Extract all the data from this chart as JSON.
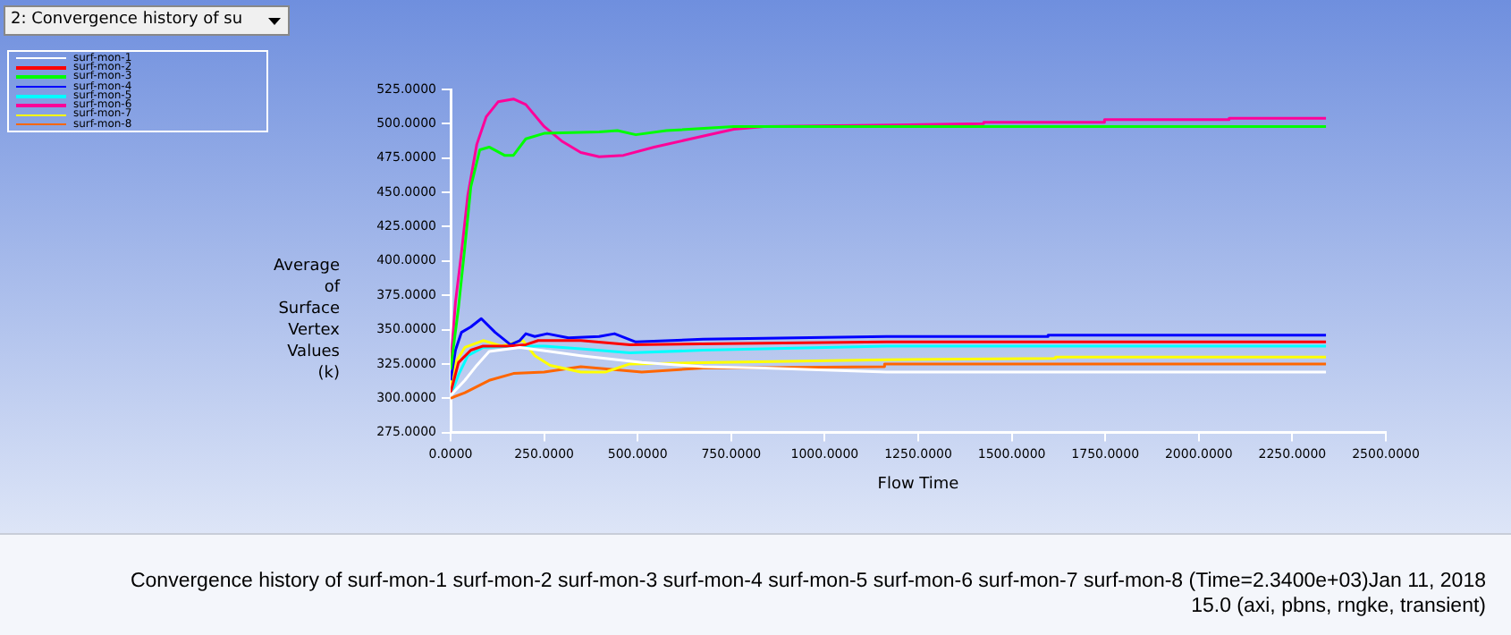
{
  "chart_data": {
    "type": "line",
    "xlabel": "Flow Time",
    "ylabel": "Average of Surface Vertex Values (k)",
    "annotations": [
      "2: Convergence history of su",
      "Convergence history of surf-mon-1 surf-mon-2 surf-mon-3 surf-mon-4 surf-mon-5 surf-mon-6 surf-mon-7 surf-mon-8  (Time=2.3400e+03)Jan 11, 2018",
      "15.0 (axi, pbns, rngke, transient)"
    ],
    "xlim": [
      0,
      2500
    ],
    "ylim": [
      275,
      525
    ],
    "xticks": [
      {
        "value": 0,
        "label": "0.0000"
      },
      {
        "value": 250,
        "label": "250.0000"
      },
      {
        "value": 500,
        "label": "500.0000"
      },
      {
        "value": 750,
        "label": "750.0000"
      },
      {
        "value": 1000,
        "label": "1000.0000"
      },
      {
        "value": 1250,
        "label": "1250.0000"
      },
      {
        "value": 1500,
        "label": "1500.0000"
      },
      {
        "value": 1750,
        "label": "1750.0000"
      },
      {
        "value": 2000,
        "label": "2000.0000"
      },
      {
        "value": 2250,
        "label": "2250.0000"
      },
      {
        "value": 2500,
        "label": "2500.0000"
      }
    ],
    "yticks": [
      {
        "value": 275,
        "label": "275.0000"
      },
      {
        "value": 300,
        "label": "300.0000"
      },
      {
        "value": 325,
        "label": "325.0000"
      },
      {
        "value": 350,
        "label": "350.0000"
      },
      {
        "value": 375,
        "label": "375.0000"
      },
      {
        "value": 400,
        "label": "400.0000"
      },
      {
        "value": 425,
        "label": "425.0000"
      },
      {
        "value": 450,
        "label": "450.0000"
      },
      {
        "value": 475,
        "label": "475.0000"
      },
      {
        "value": 500,
        "label": "500.0000"
      },
      {
        "value": 525,
        "label": "525.0000"
      }
    ],
    "grid": false,
    "legend": "top left",
    "marker": "none",
    "line_style": "solid",
    "series": [
      {
        "name": "surf-mon-1",
        "color": "#ffffff",
        "x": [
          0,
          38,
          70,
          103,
          185,
          266,
          348,
          511,
          675,
          838,
          1165,
          2340
        ],
        "values": [
          302,
          313,
          324,
          334,
          337,
          334,
          331,
          326,
          323,
          322,
          319,
          319
        ]
      },
      {
        "name": "surf-mon-2",
        "color": "#ff0000",
        "x": [
          0,
          21,
          54,
          87,
          152,
          201,
          234,
          348,
          479,
          1165,
          2340
        ],
        "values": [
          304,
          326,
          335,
          338,
          338,
          339,
          342,
          342,
          339,
          341,
          341
        ]
      },
      {
        "name": "surf-mon-3",
        "color": "#00ff00",
        "x": [
          0,
          21,
          38,
          54,
          78,
          103,
          144,
          168,
          201,
          250,
          397,
          446,
          495,
          577,
          757,
          1165,
          2340
        ],
        "values": [
          321,
          366,
          410,
          454,
          481,
          483,
          477,
          477,
          489,
          493,
          494,
          495,
          492,
          495,
          498,
          498,
          498
        ]
      },
      {
        "name": "surf-mon-4",
        "color": "#0000ff",
        "x": [
          0,
          13,
          29,
          54,
          82,
          119,
          160,
          185,
          201,
          225,
          258,
          315,
          397,
          438,
          495,
          675,
          1165,
          1597,
          1597,
          2340
        ],
        "values": [
          313,
          335,
          348,
          352,
          358,
          348,
          339,
          342,
          347,
          345,
          347,
          344,
          345,
          347,
          341,
          343,
          345,
          345,
          346,
          346
        ]
      },
      {
        "name": "surf-mon-5",
        "color": "#00ffff",
        "x": [
          0,
          21,
          46,
          87,
          168,
          250,
          348,
          479,
          675,
          1165,
          2340
        ],
        "values": [
          302,
          317,
          331,
          337,
          338,
          338,
          336,
          333,
          335,
          338,
          338
        ]
      },
      {
        "name": "surf-mon-6",
        "color": "#ff0099",
        "x": [
          0,
          13,
          29,
          46,
          70,
          95,
          127,
          168,
          201,
          250,
          299,
          348,
          397,
          462,
          544,
          642,
          757,
          838,
          1425,
          1425,
          1748,
          1748,
          2081,
          2081,
          2340
        ],
        "values": [
          324,
          370,
          406,
          448,
          485,
          505,
          516,
          518,
          514,
          498,
          487,
          479,
          476,
          477,
          483,
          489,
          496,
          498,
          500,
          501,
          501,
          503,
          503,
          504,
          504
        ]
      },
      {
        "name": "surf-mon-7",
        "color": "#ffff00",
        "x": [
          0,
          13,
          38,
          87,
          136,
          193,
          225,
          266,
          348,
          413,
          479,
          708,
          1165,
          1617,
          1617,
          2340
        ],
        "values": [
          308,
          326,
          337,
          342,
          338,
          342,
          331,
          324,
          319,
          319,
          325,
          326,
          328,
          329,
          330,
          330
        ]
      },
      {
        "name": "surf-mon-8",
        "color": "#ff6600",
        "x": [
          0,
          38,
          103,
          168,
          250,
          348,
          430,
          511,
          675,
          1160,
          1160,
          2340
        ],
        "values": [
          300,
          304,
          313,
          318,
          319,
          323,
          321,
          319,
          322,
          323,
          325,
          325
        ]
      }
    ]
  }
}
